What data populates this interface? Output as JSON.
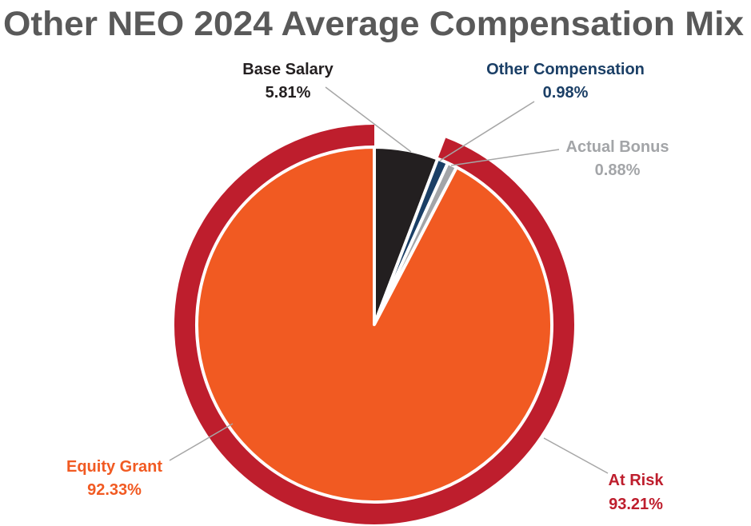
{
  "chart_data": {
    "type": "pie",
    "title": "Other NEO 2024 Average Compensation Mix",
    "slices": [
      {
        "label": "Base Salary",
        "value": 5.81,
        "value_label": "5.81%",
        "color": "#231f20",
        "label_color": "#231f20"
      },
      {
        "label": "Other Compensation",
        "value": 0.98,
        "value_label": "0.98%",
        "color": "#1b3f66",
        "label_color": "#1b3f66"
      },
      {
        "label": "Actual Bonus",
        "value": 0.88,
        "value_label": "0.88%",
        "color": "#a3a5a8",
        "label_color": "#a3a5a8"
      },
      {
        "label": "Equity Grant",
        "value": 92.33,
        "value_label": "92.33%",
        "color": "#f15a22",
        "label_color": "#f15a22"
      }
    ],
    "outer_ring": {
      "label": "At Risk",
      "value": 93.21,
      "value_label": "93.21%",
      "color": "#be1e2d",
      "label_color": "#be1e2d"
    }
  },
  "colors": {
    "title": "#595959",
    "leader_line": "#a6a6a6"
  }
}
